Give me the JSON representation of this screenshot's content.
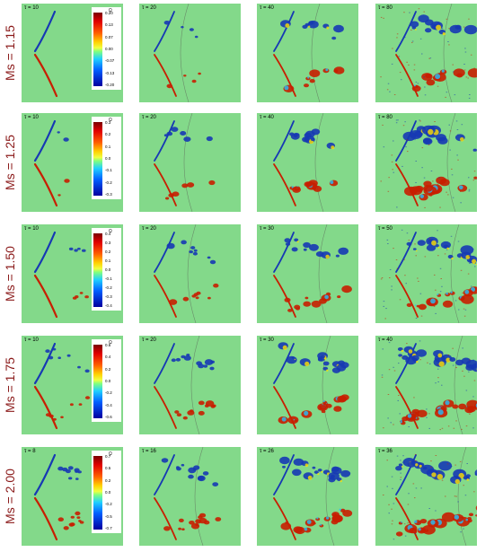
{
  "colors": {
    "background": "#83d98a",
    "positive": "#c81e00",
    "negative": "#1638b4",
    "row_label": "#8b1a1a"
  },
  "rows": [
    {
      "label": "Ms = 1.15",
      "taus": [
        "τ = 10",
        "τ = 20",
        "τ = 40",
        "τ = 80"
      ],
      "colorbar": {
        "symbol": "Ω",
        "ticks": [
          "0.20",
          "0.13",
          "0.07",
          "0.00",
          "-0.07",
          "-0.13",
          "-0.20"
        ]
      }
    },
    {
      "label": "Ms = 1.25",
      "taus": [
        "τ = 10",
        "τ = 20",
        "τ = 40",
        "τ = 80"
      ],
      "colorbar": {
        "symbol": "Ω",
        "ticks": [
          "0.3",
          "0.2",
          "0.1",
          "0.0",
          "-0.1",
          "-0.2",
          "-0.3"
        ]
      }
    },
    {
      "label": "Ms = 1.50",
      "taus": [
        "τ = 10",
        "τ = 20",
        "τ = 30",
        "τ = 50"
      ],
      "colorbar": {
        "symbol": "Ω",
        "ticks": [
          "0.4",
          "0.3",
          "0.2",
          "0.1",
          "0.0",
          "-0.1",
          "-0.2",
          "-0.3",
          "-0.4"
        ]
      }
    },
    {
      "label": "Ms = 1.75",
      "taus": [
        "τ = 10",
        "τ = 20",
        "τ = 30",
        "τ = 40"
      ],
      "colorbar": {
        "symbol": "Ω",
        "ticks": [
          "0.6",
          "0.4",
          "0.2",
          "0.0",
          "-0.2",
          "-0.4",
          "-0.6"
        ]
      }
    },
    {
      "label": "Ms = 2.00",
      "taus": [
        "τ = 8",
        "τ = 16",
        "τ = 26",
        "τ = 36"
      ],
      "colorbar": {
        "symbol": "Ω",
        "ticks": [
          "0.7",
          "0.5",
          "0.2",
          "0.0",
          "-0.2",
          "-0.5",
          "-0.7"
        ]
      }
    }
  ]
}
